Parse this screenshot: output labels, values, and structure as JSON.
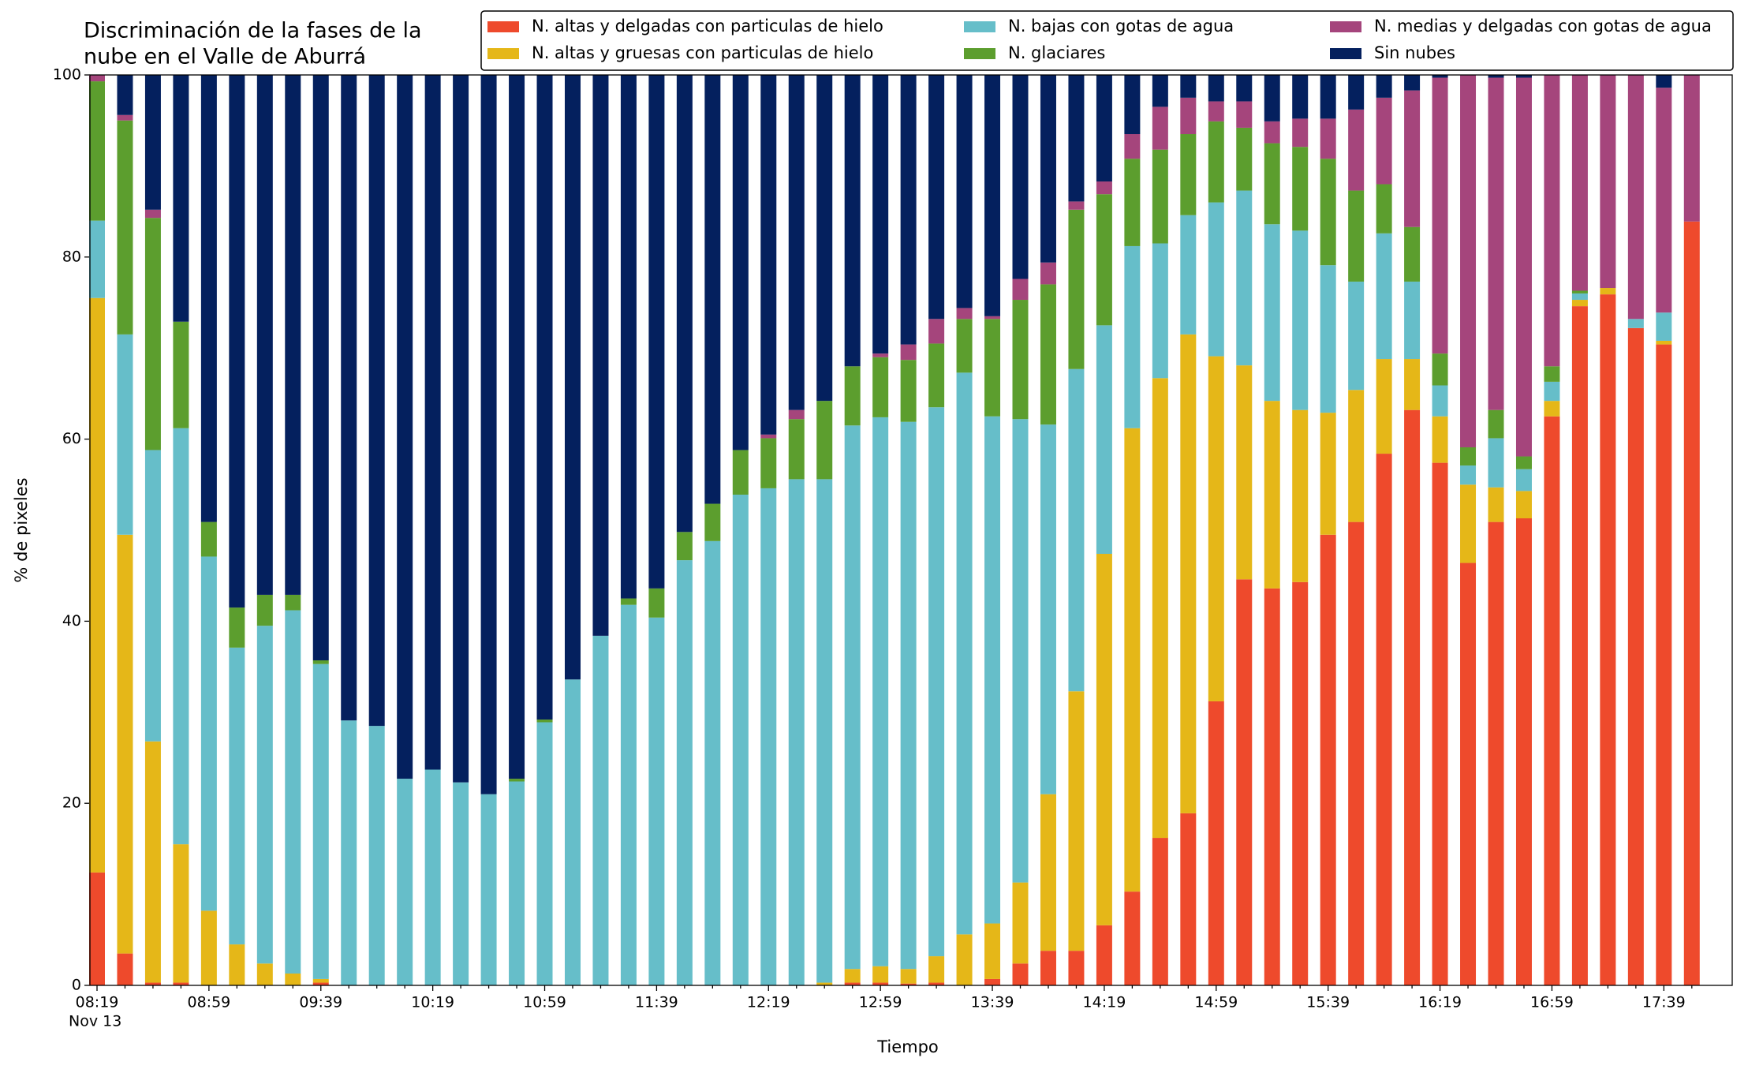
{
  "chart_data": {
    "type": "stacked_bar",
    "title_lines": [
      "Discriminación de la fases de la",
      "nube en el Valle de Aburrá"
    ],
    "xlabel": "Tiempo",
    "ylabel": "% de pixeles",
    "date_label": "Nov 13",
    "categories": [
      "08:19",
      null,
      null,
      null,
      "08:59",
      null,
      null,
      null,
      "09:39",
      null,
      null,
      null,
      "10:19",
      null,
      null,
      null,
      "10:59",
      null,
      null,
      null,
      "11:39",
      null,
      null,
      null,
      "12:19",
      null,
      null,
      null,
      "12:59",
      null,
      null,
      null,
      "13:39",
      null,
      null,
      null,
      "14:19",
      null,
      null,
      null,
      "14:59",
      null,
      null,
      null,
      "15:39",
      null,
      null,
      null,
      "16:19",
      null,
      null,
      null,
      "16:59",
      null,
      null,
      null,
      "17:39",
      null
    ],
    "ylim": [
      0,
      100
    ],
    "yticks": [
      0,
      20,
      40,
      60,
      80,
      100
    ],
    "grid": false,
    "legend": "top",
    "series": [
      {
        "name": "N. altas y delgadas con particulas de hielo",
        "color": "#ee4a2c",
        "values": [
          12.4,
          3.5,
          0.3,
          0.3,
          0,
          0,
          0,
          0,
          0.3,
          0,
          0,
          0,
          0,
          0,
          0,
          0,
          0,
          0,
          0,
          0,
          0,
          0,
          0,
          0,
          0,
          0,
          0,
          0.3,
          0.3,
          0.2,
          0.3,
          0,
          0.7,
          2.4,
          3.8,
          3.8,
          6.6,
          10.3,
          16.2,
          18.9,
          31.2,
          44.6,
          43.6,
          44.3,
          49.5,
          50.9,
          58.4,
          63.2,
          57.4,
          46.4,
          50.9,
          51.3,
          62.5,
          74.6,
          75.9,
          72.2,
          70.4,
          83.9
        ]
      },
      {
        "name": "N. altas y gruesas con particulas de hielo",
        "color": "#e5b718",
        "values": [
          63.1,
          46,
          26.5,
          15.2,
          8.2,
          4.5,
          2.4,
          1.3,
          0.4,
          0,
          0,
          0,
          0,
          0,
          0,
          0,
          0,
          0,
          0,
          0,
          0,
          0,
          0,
          0,
          0,
          0,
          0.3,
          1.5,
          1.8,
          1.6,
          2.9,
          5.6,
          6.1,
          8.9,
          17.2,
          28.5,
          40.8,
          50.9,
          50.5,
          52.6,
          37.9,
          23.5,
          20.6,
          18.9,
          13.4,
          14.5,
          10.4,
          5.6,
          5.1,
          8.6,
          3.8,
          3.0,
          1.7,
          0.7,
          0.7,
          0,
          0.4,
          0
        ]
      },
      {
        "name": "N. bajas con gotas de agua",
        "color": "#66bec9",
        "values": [
          8.5,
          22,
          32,
          45.7,
          38.9,
          32.6,
          37.1,
          39.9,
          34.6,
          29.1,
          28.5,
          22.7,
          23.7,
          22.3,
          21.0,
          22.4,
          28.9,
          33.6,
          38.4,
          41.8,
          40.4,
          46.7,
          48.8,
          53.9,
          54.6,
          55.6,
          55.3,
          59.7,
          60.3,
          60.1,
          60.3,
          61.7,
          55.7,
          50.9,
          40.6,
          35.4,
          25.1,
          20.0,
          14.8,
          13.1,
          16.9,
          19.2,
          19.4,
          19.7,
          16.2,
          11.9,
          13.8,
          8.5,
          3.4,
          2.1,
          5.4,
          2.4,
          2.1,
          0.7,
          0,
          1.0,
          3.1,
          0
        ]
      },
      {
        "name": "N. glaciares",
        "color": "#5c9e2e",
        "values": [
          15.3,
          23.5,
          25.5,
          11.7,
          3.8,
          4.4,
          3.4,
          1.7,
          0.4,
          0,
          0,
          0,
          0,
          0,
          0,
          0.3,
          0.3,
          0,
          0,
          0.7,
          3.2,
          3.1,
          4.1,
          4.9,
          5.5,
          6.6,
          8.6,
          6.5,
          6.6,
          6.8,
          7.0,
          5.9,
          10.7,
          13.1,
          15.4,
          17.5,
          14.4,
          9.6,
          10.3,
          8.9,
          8.9,
          6.9,
          8.9,
          9.2,
          11.7,
          10.0,
          5.4,
          6.0,
          3.5,
          2.0,
          3.1,
          1.4,
          1.7,
          0.3,
          0,
          0,
          0,
          0
        ]
      },
      {
        "name": "N. medias y delgadas con gotas de agua",
        "color": "#a5457c",
        "values": [
          0.7,
          0.6,
          0.9,
          0,
          0,
          0,
          0,
          0,
          0,
          0,
          0,
          0,
          0,
          0,
          0,
          0,
          0,
          0,
          0,
          0,
          0,
          0,
          0,
          0,
          0.4,
          1.0,
          0,
          0,
          0.4,
          1.7,
          2.7,
          1.2,
          0.3,
          2.3,
          2.4,
          0.9,
          1.4,
          2.7,
          4.7,
          4.0,
          2.2,
          2.9,
          2.4,
          3.1,
          4.4,
          8.9,
          9.5,
          15.0,
          30.3,
          40.9,
          36.5,
          41.6,
          32.0,
          23.7,
          23.4,
          26.8,
          24.7,
          16.1
        ]
      },
      {
        "name": "Sin nubes",
        "color": "#04205e",
        "values": [
          0,
          4.4,
          14.8,
          27.1,
          49.1,
          58.5,
          57.1,
          57.1,
          64.3,
          70.9,
          71.5,
          77.3,
          76.3,
          77.7,
          79.0,
          77.3,
          70.8,
          66.4,
          61.6,
          57.5,
          56.4,
          50.2,
          47.1,
          41.2,
          39.5,
          36.8,
          35.8,
          32.0,
          30.6,
          29.6,
          26.8,
          25.6,
          26.5,
          22.4,
          20.6,
          13.9,
          11.7,
          6.5,
          3.5,
          2.5,
          2.9,
          2.9,
          5.1,
          4.8,
          4.8,
          3.8,
          2.5,
          1.7,
          0.3,
          0,
          0.3,
          0.3,
          0,
          0,
          0,
          0,
          1.4,
          0
        ]
      }
    ]
  }
}
